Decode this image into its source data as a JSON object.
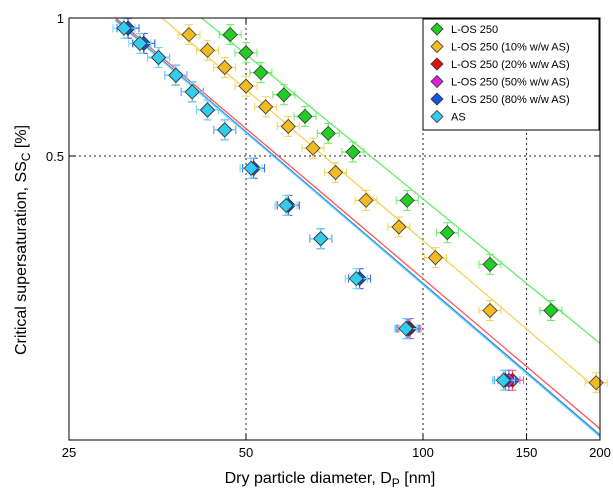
{
  "chart_data": {
    "type": "scatter",
    "xlabel": "Dry particle diameter, D",
    "xlabel_sub": "P",
    "xlabel_unit": " [nm]",
    "ylabel": "Critical supersaturation, SS",
    "ylabel_sub": "C",
    "ylabel_unit": " [%]",
    "x_scale": "log",
    "y_scale": "log",
    "xlim": [
      25,
      200
    ],
    "ylim": [
      0.12,
      1
    ],
    "x_ticks": [
      25,
      50,
      100,
      150,
      200
    ],
    "y_ticks": [
      0.5,
      1
    ],
    "x_tick_labels": [
      "25",
      "50",
      "100",
      "150",
      "200"
    ],
    "y_tick_labels": [
      "0.5",
      "1"
    ],
    "reference_lines": {
      "x": [
        50,
        100,
        150
      ],
      "y": [
        0.5
      ]
    },
    "legend_position": "top-right",
    "series": [
      {
        "name": "L-OS 250",
        "color": "#22cc22",
        "fit_color": "#66ee66",
        "x": [
          47,
          50,
          53,
          58,
          63,
          69,
          76,
          94,
          110,
          130,
          165
        ],
        "y": [
          0.92,
          0.84,
          0.76,
          0.68,
          0.61,
          0.56,
          0.51,
          0.4,
          0.34,
          0.29,
          0.23
        ],
        "fit": [
          [
            42,
            1.0
          ],
          [
            200,
            0.195
          ]
        ]
      },
      {
        "name": "L-OS 250 (10% w/w AS)",
        "color": "#f2bb22",
        "fit_color": "#f5d35a",
        "x": [
          40,
          43,
          46,
          50,
          54,
          59,
          65,
          71,
          80,
          91,
          105,
          130,
          197
        ],
        "y": [
          0.92,
          0.85,
          0.78,
          0.71,
          0.64,
          0.58,
          0.52,
          0.46,
          0.4,
          0.35,
          0.3,
          0.23,
          0.16
        ],
        "fit": [
          [
            36,
            1.0
          ],
          [
            200,
            0.153
          ]
        ]
      },
      {
        "name": "L-OS 250 (20% w/w AS)",
        "color": "#dd1111",
        "fit_color": "#ff5555",
        "x": [
          31.5,
          33.5,
          35.5,
          38,
          40.5,
          43,
          46,
          51.5,
          59,
          67,
          78,
          95,
          142
        ],
        "y": [
          0.95,
          0.88,
          0.82,
          0.75,
          0.69,
          0.63,
          0.57,
          0.47,
          0.39,
          0.33,
          0.27,
          0.21,
          0.162
        ],
        "fit": [
          [
            30,
            1.0
          ],
          [
            200,
            0.127
          ]
        ]
      },
      {
        "name": "L-OS 250 (50% w/w AS)",
        "color": "#dd22dd",
        "fit_color": "#e055e0",
        "x": [
          31.5,
          33.5,
          35.5,
          38,
          40.5,
          43,
          46,
          51.5,
          59,
          67,
          78,
          94.5,
          140
        ],
        "y": [
          0.95,
          0.88,
          0.82,
          0.75,
          0.69,
          0.63,
          0.57,
          0.47,
          0.39,
          0.33,
          0.27,
          0.21,
          0.162
        ],
        "fit": null
      },
      {
        "name": "L-OS 250 (80% w/w AS)",
        "color": "#1155dd",
        "fit_color": "#3377ee",
        "x": [
          31.5,
          33.5,
          35.5,
          38,
          40.5,
          43,
          46,
          51.5,
          59,
          67,
          78,
          94,
          138
        ],
        "y": [
          0.95,
          0.88,
          0.82,
          0.75,
          0.69,
          0.63,
          0.57,
          0.47,
          0.39,
          0.33,
          0.27,
          0.21,
          0.162
        ],
        "fit": [
          [
            30,
            0.99
          ],
          [
            200,
            0.123
          ]
        ]
      },
      {
        "name": "AS",
        "color": "#33ccee",
        "fit_color": "#66ddf5",
        "x": [
          31,
          33,
          35.5,
          38,
          40.5,
          43,
          46,
          51,
          58.5,
          67,
          77,
          93.5,
          137
        ],
        "y": [
          0.95,
          0.88,
          0.82,
          0.75,
          0.69,
          0.63,
          0.57,
          0.47,
          0.39,
          0.33,
          0.27,
          0.21,
          0.162
        ],
        "fit": [
          [
            30,
            0.985
          ],
          [
            200,
            0.122
          ]
        ]
      }
    ]
  }
}
